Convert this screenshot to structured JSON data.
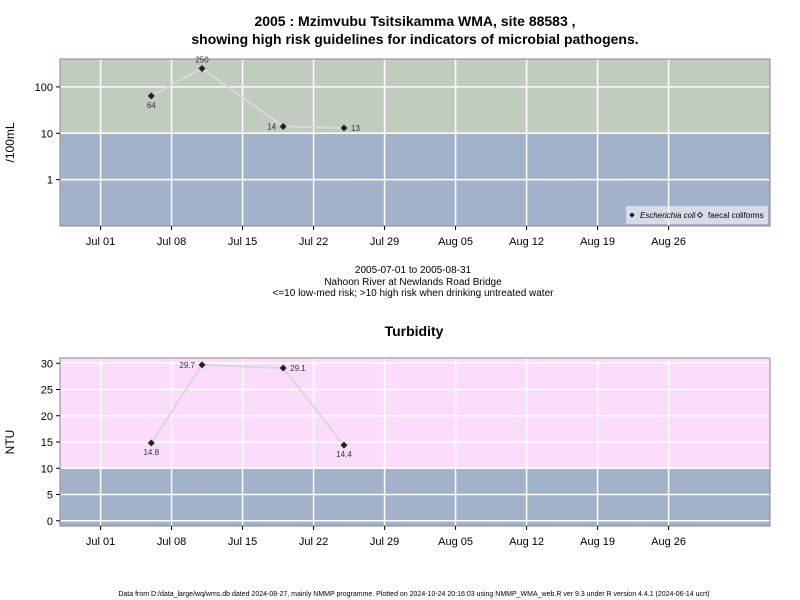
{
  "chart_data": [
    {
      "type": "line",
      "title_line1": "2005 : Mzimvubu Tsitsikamma WMA, site 88583 ,",
      "title_line2": "showing high risk guidelines for indicators of microbial pathogens.",
      "ylabel": "/100mL",
      "yscale": "log",
      "ylim": [
        0.1,
        400
      ],
      "yticks": [
        1,
        10,
        100
      ],
      "ytick_labels": [
        "1",
        "10",
        "100"
      ],
      "xlim": [
        "2005-06-27",
        "2005-09-05"
      ],
      "xticks": [
        "2005-07-01",
        "2005-07-08",
        "2005-07-15",
        "2005-07-22",
        "2005-07-29",
        "2005-08-05",
        "2005-08-12",
        "2005-08-19",
        "2005-08-26"
      ],
      "xtick_labels": [
        "Jul 01",
        "Jul 08",
        "Jul 15",
        "Jul 22",
        "Jul 29",
        "Aug 05",
        "Aug 12",
        "Aug 19",
        "Aug 26"
      ],
      "grid": true,
      "bands": [
        {
          "from": 0.1,
          "to": 10,
          "color": "#a2b2cb"
        },
        {
          "from": 10,
          "to": 400,
          "color": "#c2cbc0"
        }
      ],
      "series": [
        {
          "name": "Escherichia coli",
          "marker": "diamond",
          "color": "#222222",
          "line_color": "#d8d8d8",
          "x": [
            "2005-07-06",
            "2005-07-11",
            "2005-07-19",
            "2005-07-25"
          ],
          "y": [
            64,
            250,
            14,
            13
          ],
          "labels": [
            "64",
            "250",
            "14",
            "13"
          ],
          "label_pos": [
            "below",
            "above",
            "left",
            "right"
          ]
        }
      ],
      "legend": {
        "position": "bottom-right",
        "entries": [
          {
            "label": "Escherichia coli",
            "marker": "filled-diamond",
            "italic": true
          },
          {
            "label": "faecal coliforms",
            "marker": "open-diamond",
            "italic": false
          }
        ]
      }
    },
    {
      "type": "line",
      "title": "Turbidity",
      "ylabel": "NTU",
      "yscale": "linear",
      "ylim": [
        -1,
        31
      ],
      "yticks": [
        0,
        5,
        10,
        15,
        20,
        25,
        30
      ],
      "ytick_labels": [
        "0",
        "5",
        "10",
        "15",
        "20",
        "25",
        "30"
      ],
      "xlim": [
        "2005-06-27",
        "2005-09-05"
      ],
      "xticks": [
        "2005-07-01",
        "2005-07-08",
        "2005-07-15",
        "2005-07-22",
        "2005-07-29",
        "2005-08-05",
        "2005-08-12",
        "2005-08-19",
        "2005-08-26"
      ],
      "xtick_labels": [
        "Jul 01",
        "Jul 08",
        "Jul 15",
        "Jul 22",
        "Jul 29",
        "Aug 05",
        "Aug 12",
        "Aug 19",
        "Aug 26"
      ],
      "grid": true,
      "bands": [
        {
          "from": -1,
          "to": 10,
          "color": "#a2b2cb"
        },
        {
          "from": 10,
          "to": 31,
          "color": "#fbdcfb"
        }
      ],
      "series": [
        {
          "name": "",
          "marker": "diamond",
          "color": "#222222",
          "line_color": "#d8d8d8",
          "x": [
            "2005-07-06",
            "2005-07-11",
            "2005-07-19",
            "2005-07-25"
          ],
          "y": [
            14.8,
            29.7,
            29.1,
            14.4
          ],
          "labels": [
            "14.8",
            "29.7",
            "29.1",
            "14.4"
          ],
          "label_pos": [
            "below",
            "left",
            "right",
            "below"
          ]
        }
      ]
    }
  ],
  "middle_text": {
    "line1": "2005-07-01 to 2005-08-31",
    "line2": "Nahoon River at Newlands Road Bridge",
    "line3": "<=10 low-med risk; >10 high risk when drinking untreated water"
  },
  "footer": "Data from D:/data_large/wq/wms.db dated 2024-08-27, mainly NMMP programme. Plotted on 2024-10-24 20:16:03 using NMMP_WMA_web.R ver 9.3 under R version 4.4.1 (2024-06-14 ucrt)"
}
